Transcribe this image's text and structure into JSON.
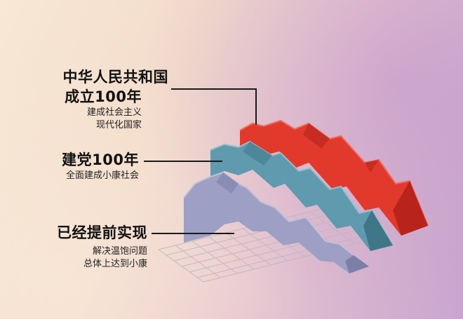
{
  "milestones": [
    {
      "title_line1": "中华人民共和国",
      "title_line2": "成立100年",
      "desc_line1": "建成社会主义",
      "desc_line2": "现代化国家",
      "color": "#e2392d"
    },
    {
      "title_line1": "建党100年",
      "desc_line1": "全面建成小康社会",
      "color": "#5f9aae"
    },
    {
      "title_line1": "已经提前实现",
      "desc_line1": "解决温饱问题",
      "desc_line2": "总体上达到小康",
      "color": "#9da0c4"
    }
  ]
}
